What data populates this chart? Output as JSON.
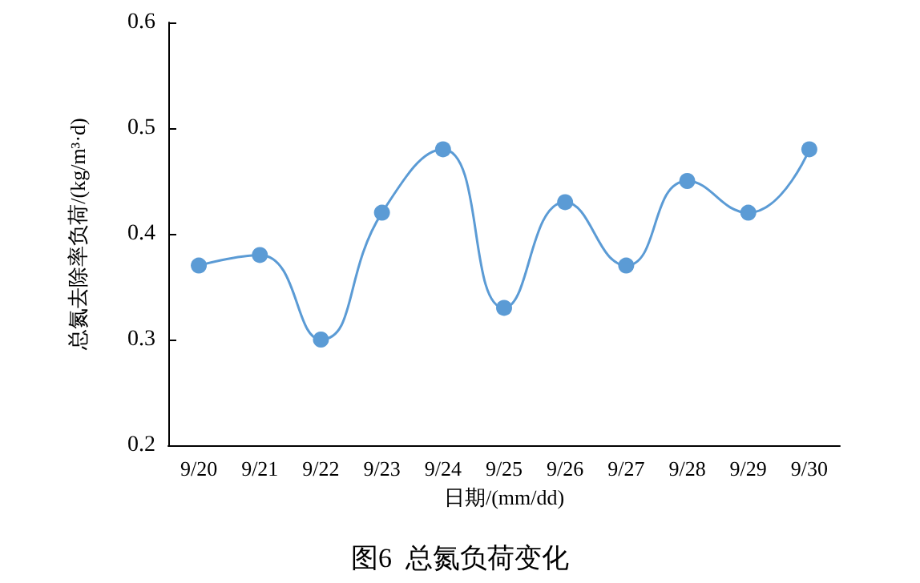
{
  "chart_data": {
    "type": "line",
    "title": "图6  总氮负荷变化",
    "xlabel": "日期/(mm/dd)",
    "ylabel": "总氮去除率负荷/(kg/m³·d)",
    "categories": [
      "9/20",
      "9/21",
      "9/22",
      "9/23",
      "9/24",
      "9/25",
      "9/26",
      "9/27",
      "9/28",
      "9/29",
      "9/30"
    ],
    "series": [
      {
        "color": "#5b9bd5",
        "values": [
          0.37,
          0.38,
          0.3,
          0.42,
          0.48,
          0.33,
          0.43,
          0.37,
          0.45,
          0.42,
          0.48
        ]
      }
    ],
    "ylim": [
      0.2,
      0.6
    ],
    "yticks": [
      0.2,
      0.3,
      0.4,
      0.5,
      0.6
    ],
    "grid": false,
    "marker": "circle",
    "line_style": "solid"
  }
}
